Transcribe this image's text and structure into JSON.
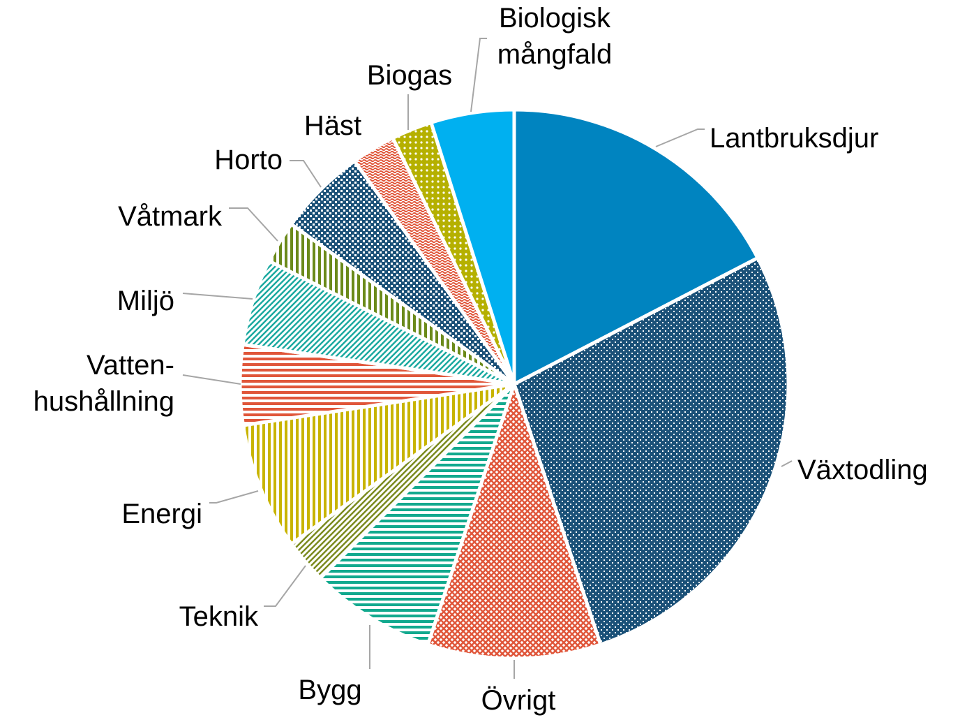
{
  "chart_data": {
    "type": "pie",
    "categories": [
      "Lantbruksdjur",
      "Växtodling",
      "Övrigt",
      "Bygg",
      "Teknik",
      "Energi",
      "Vatten-\nhushållning",
      "Miljö",
      "Våtmark",
      "Horto",
      "Häst",
      "Biogas",
      "Biologisk\nmångfald"
    ],
    "values": [
      17.4,
      27.5,
      10.2,
      7.4,
      2.6,
      7.5,
      4.7,
      5.1,
      2.5,
      5.2,
      2.6,
      2.4,
      4.9
    ],
    "colors": [
      "#0084c0",
      "#1b5178",
      "#e0563a",
      "#12a98e",
      "#7a8a1e",
      "#c8b400",
      "#e0563a",
      "#1aa9a0",
      "#6b8a1a",
      "#1b5178",
      "#e0563a",
      "#b5b000",
      "#00b0f0"
    ]
  }
}
